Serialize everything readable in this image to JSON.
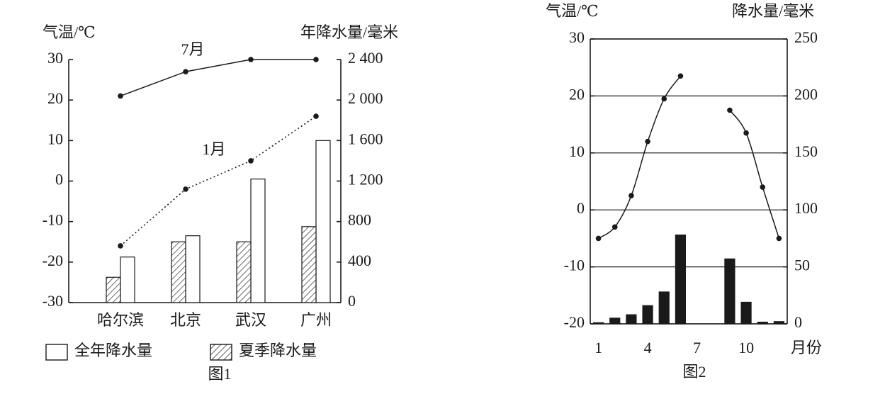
{
  "chart_data": [
    {
      "type": "bar-line",
      "caption": "图1",
      "categories": [
        "哈尔滨",
        "北京",
        "武汉",
        "广州"
      ],
      "ylabel": "气温/℃",
      "y2label": "年降水量/毫米",
      "ylim": [
        -30,
        30
      ],
      "yticks": [
        -30,
        -20,
        -10,
        0,
        10,
        20,
        30
      ],
      "y2lim": [
        0,
        2400
      ],
      "y2ticks": [
        0,
        400,
        800,
        {
          "value": 1200,
          "label": "1 200"
        },
        {
          "value": 1600,
          "label": "1 600"
        },
        {
          "value": 2000,
          "label": "2 000"
        },
        {
          "value": 2400,
          "label": "2 400"
        }
      ],
      "grid": false,
      "legend": "bottom",
      "series": [
        {
          "name": "7月",
          "type": "line",
          "style": "solid",
          "color": "#1a1a1a",
          "values": [
            21,
            27,
            30,
            30
          ]
        },
        {
          "name": "1月",
          "type": "line",
          "style": "dotted",
          "color": "#1a1a1a",
          "values": [
            -16,
            -2,
            5,
            16
          ]
        },
        {
          "name": "全年降水量",
          "type": "bar",
          "axis": "y2",
          "color": "#ffffff",
          "values": [
            450,
            660,
            1220,
            1600
          ]
        },
        {
          "name": "夏季降水量",
          "type": "bar",
          "axis": "y2",
          "pattern": "hatch",
          "color": "#ffffff",
          "values": [
            250,
            600,
            600,
            750
          ]
        }
      ]
    },
    {
      "type": "bar-line",
      "caption": "图2",
      "x": [
        1,
        2,
        3,
        4,
        5,
        6,
        7,
        8,
        9,
        10,
        11,
        12
      ],
      "xlabel": "月份",
      "xlim": [
        0.5,
        12.5
      ],
      "xticks": [
        1,
        4,
        7,
        10
      ],
      "ylabel": "气温/℃",
      "y2label": "降水量/毫米",
      "ylim": [
        -20,
        30
      ],
      "yticks": [
        -20,
        -10,
        0,
        10,
        20,
        30
      ],
      "y2lim": [
        0,
        250
      ],
      "y2ticks": [
        0,
        50,
        100,
        150,
        200,
        250
      ],
      "grid": true,
      "series": [
        {
          "type": "line",
          "style": "solid",
          "smooth": true,
          "color": "#1a1a1a",
          "values": [
            -5,
            -3,
            2.5,
            12,
            19.5,
            23.5,
            null,
            null,
            17.5,
            13.5,
            4,
            -5
          ]
        },
        {
          "type": "bar",
          "axis": "y2",
          "color": "#1a1a1a",
          "values": [
            1,
            5,
            8,
            16,
            28,
            78,
            null,
            null,
            57,
            19,
            1.5,
            2
          ]
        }
      ]
    }
  ]
}
